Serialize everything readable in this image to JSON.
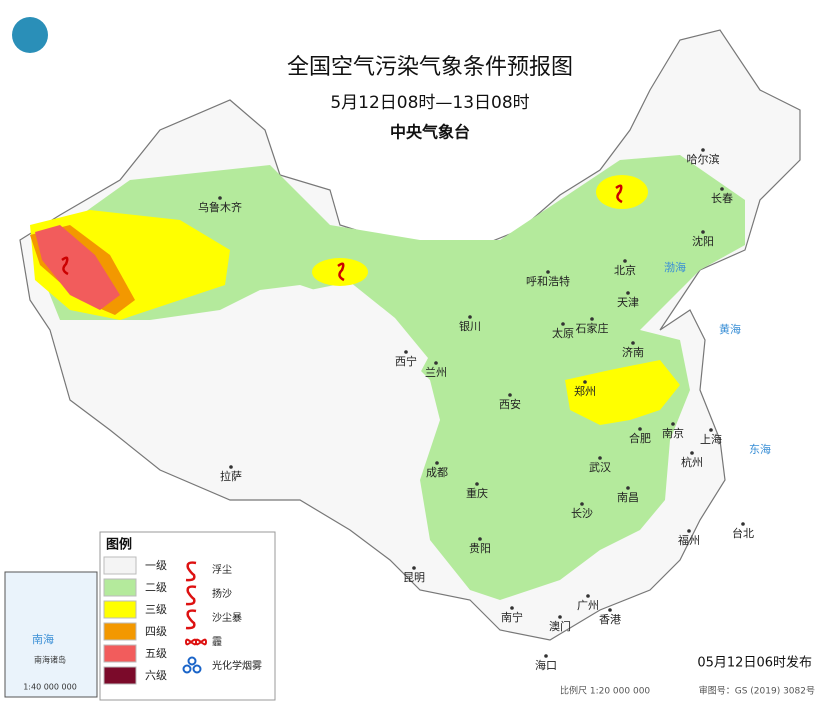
{
  "header": {
    "title": "全国空气污染气象条件预报图",
    "subtitle": "5月12日08时—13日08时",
    "issuer": "中央气象台"
  },
  "cities": [
    "乌鲁木齐",
    "哈尔滨",
    "长春",
    "沈阳",
    "北京",
    "天津",
    "呼和浩特",
    "石家庄",
    "太原",
    "济南",
    "银川",
    "西宁",
    "兰州",
    "郑州",
    "西安",
    "合肥",
    "南京",
    "上海",
    "杭州",
    "武汉",
    "成都",
    "重庆",
    "长沙",
    "南昌",
    "拉萨",
    "贵阳",
    "昆明",
    "福州",
    "台北",
    "南宁",
    "广州",
    "香港",
    "澳门",
    "海口"
  ],
  "seas": [
    "渤海",
    "黄海",
    "东海",
    "南海"
  ],
  "legend": {
    "title": "图例",
    "levels": [
      {
        "label": "一级",
        "color": "#f4f4f4"
      },
      {
        "label": "二级",
        "color": "#b4ea9c"
      },
      {
        "label": "三级",
        "color": "#ffff00"
      },
      {
        "label": "四级",
        "color": "#f39800"
      },
      {
        "label": "五级",
        "color": "#f25c5c"
      },
      {
        "label": "六级",
        "color": "#7b0a2a"
      }
    ],
    "phenomena": [
      "浮尘",
      "扬沙",
      "沙尘暴",
      "霾",
      "光化学烟雾"
    ]
  },
  "inset": {
    "title": "南海诸岛",
    "scale": "1:40 000 000"
  },
  "footer": {
    "issued": "05月12日06时发布",
    "scale": "比例尺 1:20 000 000",
    "review": "审图号：GS (2019) 3082号"
  }
}
